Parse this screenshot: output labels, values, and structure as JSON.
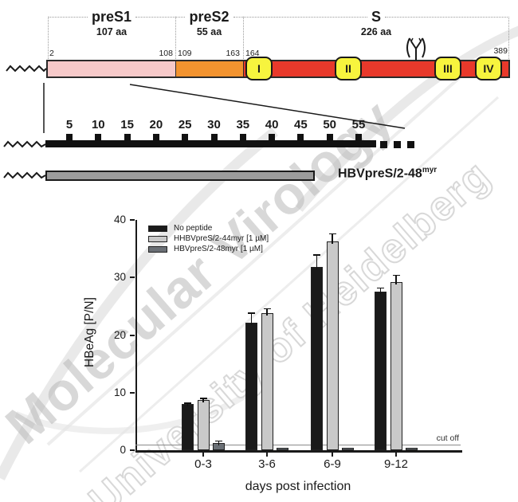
{
  "watermark": {
    "line1": "Molecular Virology",
    "line2": "University of Heidelberg"
  },
  "domain_map": {
    "regions": [
      {
        "name": "preS1",
        "aa": "107 aa",
        "start_label": "2",
        "end_label": "108",
        "color": "#f6c9c9"
      },
      {
        "name": "preS2",
        "aa": "55 aa",
        "start_label": "109",
        "end_label": "163",
        "color": "#f2932f"
      },
      {
        "name": "S",
        "aa": "226 aa",
        "start_label": "164",
        "end_label": "389",
        "color": "#e8392b"
      }
    ],
    "tm_domains": [
      "I",
      "II",
      "III",
      "IV"
    ],
    "tm_color": "#f7f43e",
    "glyco_icon": "glycosylation-site-icon"
  },
  "ruler": {
    "ticks": [
      "5",
      "10",
      "15",
      "20",
      "25",
      "30",
      "35",
      "40",
      "45",
      "50",
      "55"
    ]
  },
  "construct": {
    "label": "HBVpreS/2-48",
    "superscript": "myr",
    "bar_color": "#9c9c9c"
  },
  "chart_data": {
    "type": "bar",
    "title": "",
    "xlabel": "days post infection",
    "ylabel": "HBeAg [P/N]",
    "ylim": [
      0,
      40
    ],
    "yticks": [
      0,
      10,
      20,
      30,
      40
    ],
    "categories": [
      "0-3",
      "3-6",
      "6-9",
      "9-12"
    ],
    "series": [
      {
        "name": "No peptide",
        "color": "#1a1a1a",
        "values": [
          8.0,
          22.2,
          31.8,
          27.5
        ],
        "errors": [
          0.3,
          1.7,
          2.2,
          0.8
        ]
      },
      {
        "name": "HHBVpreS/2-44myr [1 µM]",
        "color": "#c9c9c9",
        "values": [
          8.7,
          23.8,
          36.2,
          29.2
        ],
        "errors": [
          0.4,
          0.9,
          1.5,
          1.3
        ]
      },
      {
        "name": "HBVpreS/2-48myr [1 µM]",
        "color": "#6b7076",
        "values": [
          1.3,
          0.4,
          0.4,
          0.4
        ],
        "errors": [
          0.4,
          0.1,
          0.1,
          0.1
        ]
      }
    ],
    "cutoff": {
      "label": "cut off",
      "value": 1.0
    },
    "legend_position": "top-left",
    "grid": false
  }
}
